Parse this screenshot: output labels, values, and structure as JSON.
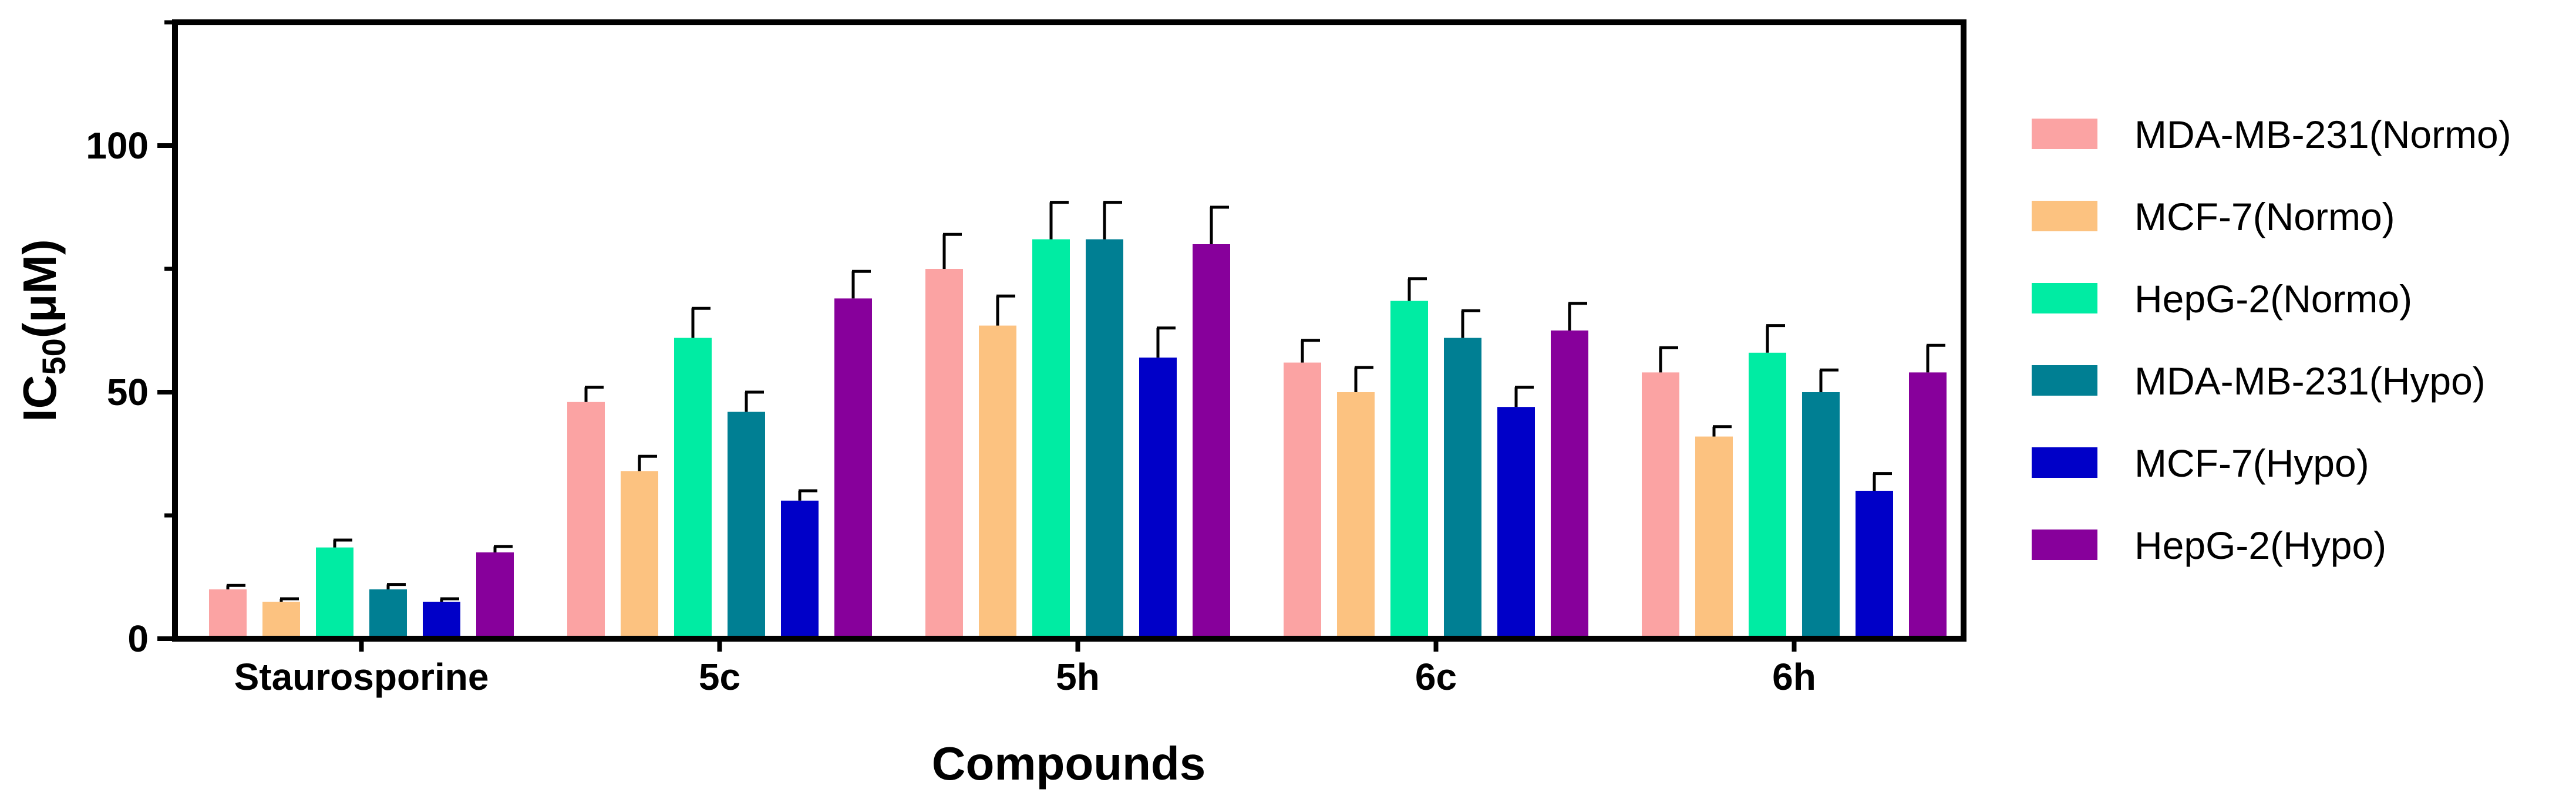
{
  "chart_data": {
    "type": "bar",
    "title": "",
    "xlabel": "Compounds",
    "ylabel": {
      "main": "IC",
      "sub": "50",
      "unit": "(μM)"
    },
    "ylim": [
      0,
      125
    ],
    "yticks": [
      0,
      50,
      100
    ],
    "categories": [
      "Staurosporine",
      "5c",
      "5h",
      "6c",
      "6h"
    ],
    "legend_position": "right",
    "series": [
      {
        "name": "MDA-MB-231(Normo)",
        "color": "#FBA3A3",
        "values": [
          10,
          48,
          75,
          56,
          54
        ],
        "errors": [
          0.8,
          3,
          7,
          4.5,
          5
        ]
      },
      {
        "name": "MCF-7(Normo)",
        "color": "#FCC280",
        "values": [
          7.5,
          34,
          63.5,
          50,
          41
        ],
        "errors": [
          0.6,
          3,
          6,
          5,
          2
        ]
      },
      {
        "name": "HepG-2(Normo)",
        "color": "#00ECA3",
        "values": [
          18.5,
          61,
          81,
          68.5,
          58
        ],
        "errors": [
          1.5,
          6,
          7.5,
          4.5,
          5.5
        ]
      },
      {
        "name": "MDA-MB-231(Hypo)",
        "color": "#007F93",
        "values": [
          10,
          46,
          81,
          61,
          50
        ],
        "errors": [
          1,
          4,
          7.5,
          5.5,
          4.5
        ]
      },
      {
        "name": "MCF-7(Hypo)",
        "color": "#0000C8",
        "values": [
          7.5,
          28,
          57,
          47,
          30
        ],
        "errors": [
          0.6,
          2,
          6,
          4,
          3.5
        ]
      },
      {
        "name": "HepG-2(Hypo)",
        "color": "#87009B",
        "values": [
          17.5,
          69,
          80,
          62.5,
          54
        ],
        "errors": [
          1.2,
          5.5,
          7.5,
          5.5,
          5.5
        ]
      }
    ]
  }
}
